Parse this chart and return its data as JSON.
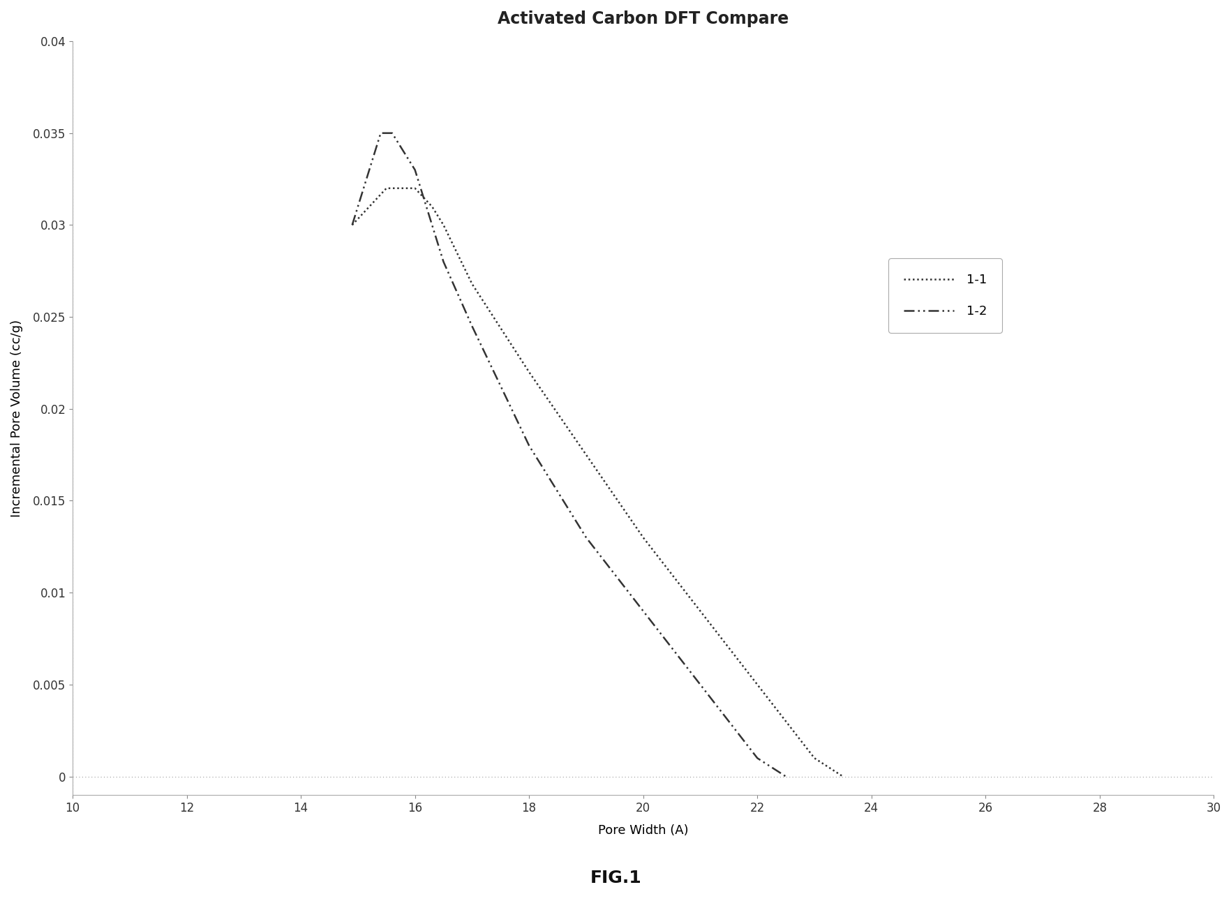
{
  "title": "Activated Carbon DFT Compare",
  "xlabel": "Pore Width (A)",
  "ylabel": "Incremental Pore Volume (cc/g)",
  "figcaption": "FIG.1",
  "xlim": [
    10,
    30
  ],
  "ylim": [
    -0.001,
    0.04
  ],
  "xticks": [
    10,
    12,
    14,
    16,
    18,
    20,
    22,
    24,
    26,
    28,
    30
  ],
  "yticks": [
    0,
    0.005,
    0.01,
    0.015,
    0.02,
    0.025,
    0.03,
    0.035,
    0.04
  ],
  "series_11": {
    "label": "1-1",
    "x": [
      14.9,
      15.2,
      15.5,
      15.8,
      16.0,
      16.3,
      16.5,
      17.0,
      18.0,
      19.0,
      20.0,
      21.0,
      22.0,
      23.0,
      23.5
    ],
    "y": [
      0.03,
      0.031,
      0.032,
      0.032,
      0.032,
      0.031,
      0.03,
      0.0268,
      0.022,
      0.0175,
      0.013,
      0.009,
      0.005,
      0.001,
      0.0
    ]
  },
  "series_12": {
    "label": "1-2",
    "x": [
      14.9,
      15.2,
      15.4,
      15.6,
      15.8,
      16.0,
      16.5,
      17.0,
      18.0,
      19.0,
      20.0,
      21.0,
      22.0,
      22.5
    ],
    "y": [
      0.03,
      0.033,
      0.035,
      0.035,
      0.034,
      0.033,
      0.028,
      0.0245,
      0.018,
      0.013,
      0.009,
      0.005,
      0.001,
      0.0
    ]
  },
  "color": "#333333",
  "background_color": "#ffffff",
  "grid_color": "#999999",
  "title_fontsize": 17,
  "label_fontsize": 13,
  "tick_fontsize": 12,
  "legend_fontsize": 13,
  "caption_fontsize": 18
}
